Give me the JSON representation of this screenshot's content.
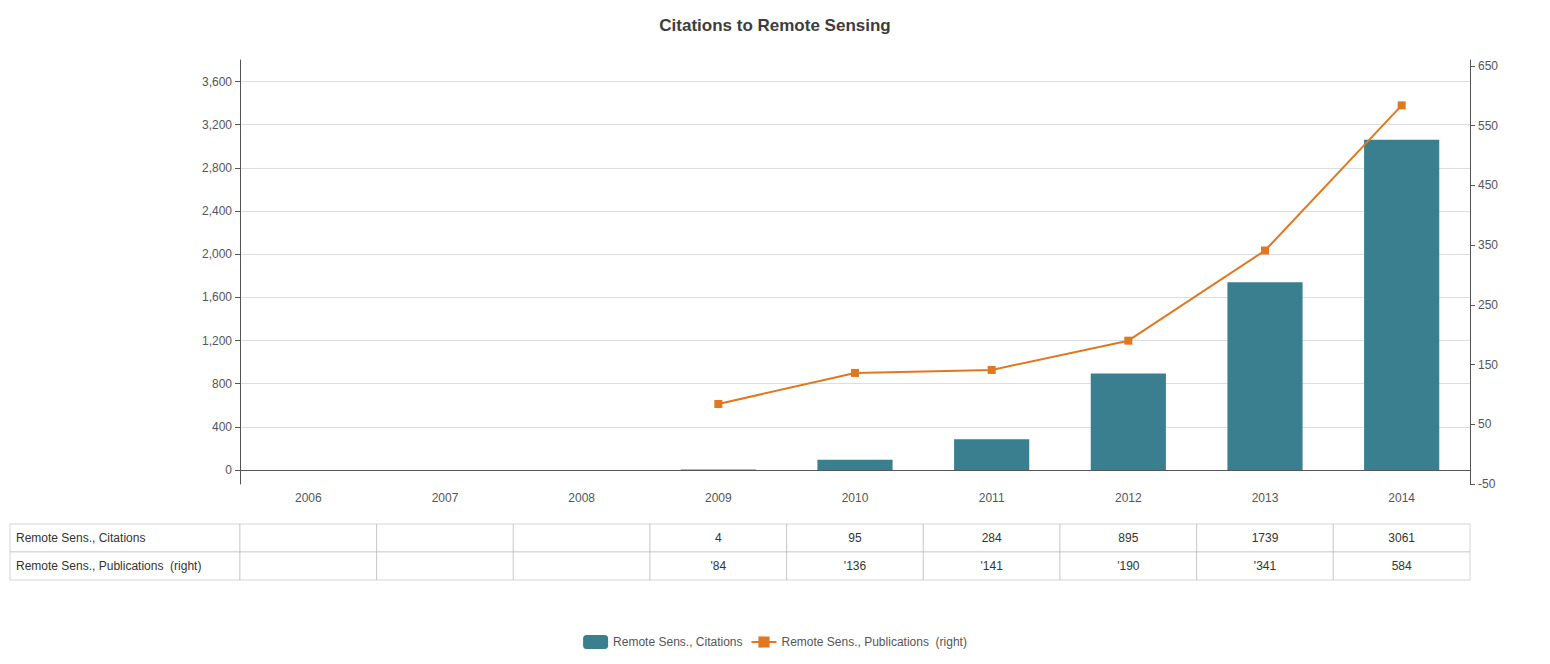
{
  "chart_data": {
    "type": "bar",
    "title": "Citations to Remote Sensing",
    "categories": [
      "2006",
      "2007",
      "2008",
      "2009",
      "2010",
      "2011",
      "2012",
      "2013",
      "2014"
    ],
    "series": [
      {
        "name": "Remote Sens., Citations",
        "type": "bar",
        "color": "#3a7f8f",
        "values": [
          0,
          0,
          0,
          4,
          95,
          284,
          895,
          1739,
          3061
        ]
      },
      {
        "name": "Remote Sens., Publications  (right)",
        "type": "line",
        "axis": "y2",
        "color": "#e07820",
        "marker": "square",
        "values": [
          null,
          null,
          null,
          84,
          136,
          141,
          190,
          341,
          584
        ]
      }
    ],
    "ylim": [
      -130,
      3800
    ],
    "yticks": [
      0,
      400,
      800,
      1200,
      1600,
      2000,
      2400,
      2800,
      3200,
      3600
    ],
    "y2lim": [
      -50,
      660
    ],
    "y2ticks": [
      -50,
      50,
      150,
      250,
      350,
      450,
      550,
      650
    ],
    "grid": true,
    "legend": "bottom",
    "table": [
      {
        "label": "Remote Sens., Citations",
        "cells": [
          null,
          null,
          null,
          "4",
          "95",
          "284",
          "895",
          "1739",
          "3061"
        ]
      },
      {
        "label": "Remote Sens., Publications  (right)",
        "cells": [
          null,
          null,
          null,
          "'84",
          "'136",
          "'141",
          "'190",
          "'341",
          "584"
        ]
      }
    ]
  }
}
